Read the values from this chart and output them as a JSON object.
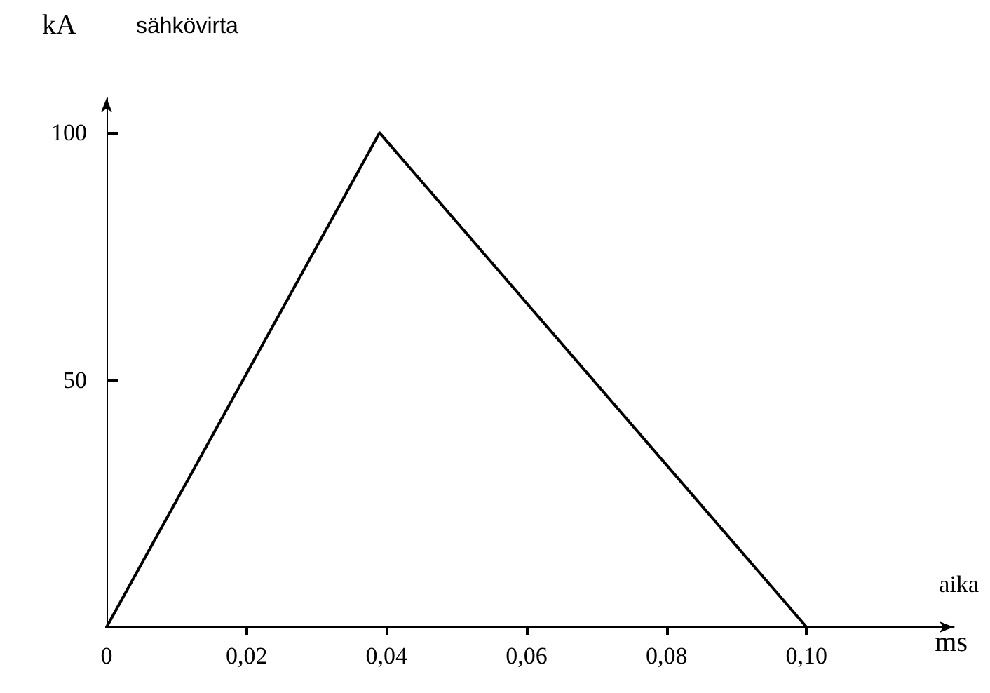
{
  "chart_data": {
    "type": "line",
    "title": "sähkövirta",
    "ylabel": "kA",
    "xlabel": "ms",
    "annotations": [
      "aika"
    ],
    "x": [
      0,
      0.039,
      0.1
    ],
    "series": [
      {
        "color": "#000000",
        "values": [
          0,
          100,
          0
        ]
      }
    ],
    "xlim": [
      0,
      0.121
    ],
    "ylim": [
      0,
      107
    ],
    "xticks": [
      {
        "value": 0,
        "label": "0"
      },
      {
        "value": 0.02,
        "label": "0,02"
      },
      {
        "value": 0.04,
        "label": "0,04"
      },
      {
        "value": 0.06,
        "label": "0,06"
      },
      {
        "value": 0.08,
        "label": "0,08"
      },
      {
        "value": 0.1,
        "label": "0,10"
      }
    ],
    "yticks": [
      50,
      100
    ],
    "grid": false,
    "marker": "none",
    "line_style": "solid"
  }
}
